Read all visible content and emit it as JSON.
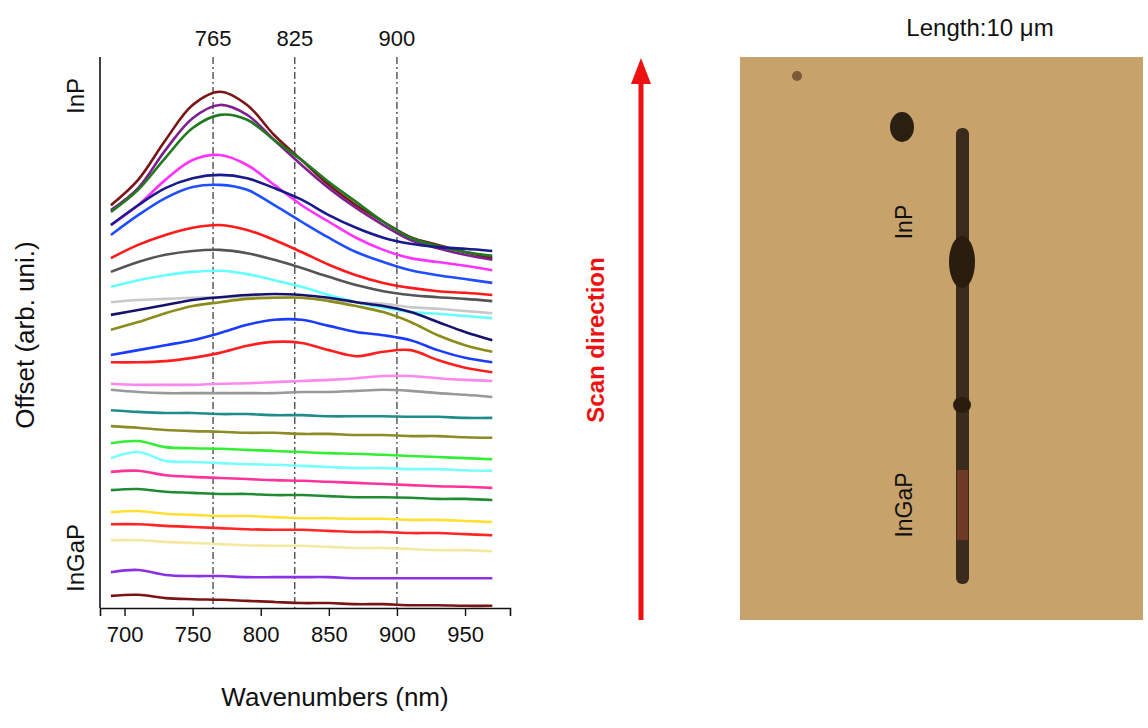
{
  "chart_data": {
    "type": "line",
    "x_label": "Wavenumbers (nm)",
    "y_label": "Offset (arb. uni.)",
    "annotations": [
      "InP",
      "InGaP"
    ],
    "vlines": [
      765,
      825,
      900
    ],
    "xlim": [
      682,
      983
    ],
    "ylim": [
      0,
      100
    ],
    "xticks": [
      700,
      750,
      800,
      850,
      900,
      950
    ],
    "tick_labels": "x",
    "grid": false,
    "x": [
      690,
      710,
      730,
      750,
      770,
      790,
      810,
      830,
      850,
      870,
      890,
      910,
      930,
      950,
      970
    ],
    "series": [
      {
        "color": "#7b1414",
        "values": [
          73.1,
          77.7,
          84.9,
          91.3,
          93.7,
          91.3,
          85.8,
          81.3,
          76.8,
          73.1,
          70.1,
          67.3,
          65.9,
          64.6,
          63.5
        ]
      },
      {
        "color": "#7f1f8f",
        "values": [
          72.2,
          76.2,
          83.1,
          88.9,
          91.3,
          89.5,
          84.9,
          80.4,
          76.2,
          72.6,
          69.5,
          66.8,
          65.3,
          64.1,
          63.2
        ]
      },
      {
        "color": "#1f7a1f",
        "values": [
          71.9,
          75.9,
          81.7,
          87.1,
          89.5,
          88.6,
          84.9,
          81.3,
          77.3,
          73.7,
          70.1,
          67.2,
          65.7,
          64.6,
          63.9
        ]
      },
      {
        "color": "#ff33ff",
        "values": [
          69.5,
          73.1,
          77.7,
          81.3,
          82.2,
          80.4,
          76.8,
          73.1,
          70.1,
          67.2,
          65.0,
          63.5,
          62.8,
          62.1,
          61.3
        ]
      },
      {
        "color": "#1a1a8c",
        "values": [
          69.5,
          73.1,
          76.2,
          78.0,
          78.6,
          78.0,
          76.2,
          74.1,
          71.3,
          69.0,
          67.2,
          66.1,
          65.5,
          65.2,
          64.8
        ]
      },
      {
        "color": "#1f4fff",
        "values": [
          67.7,
          71.3,
          74.4,
          76.4,
          76.8,
          75.9,
          73.1,
          70.1,
          67.2,
          64.6,
          62.8,
          61.3,
          60.4,
          59.7,
          59.0
        ]
      },
      {
        "color": "#ff1a1a",
        "values": [
          63.5,
          65.9,
          67.7,
          69.0,
          69.5,
          68.6,
          66.8,
          64.6,
          62.3,
          60.4,
          59.0,
          58.1,
          57.5,
          57.2,
          56.8
        ]
      },
      {
        "color": "#555555",
        "values": [
          61.0,
          62.8,
          64.1,
          64.8,
          65.0,
          64.4,
          63.2,
          61.7,
          60.1,
          58.6,
          57.5,
          56.8,
          56.4,
          56.1,
          55.7
        ]
      },
      {
        "color": "#66ffff",
        "values": [
          58.3,
          59.5,
          60.4,
          61.0,
          61.2,
          60.6,
          59.5,
          58.3,
          56.8,
          55.5,
          54.5,
          53.7,
          53.4,
          53.0,
          52.6
        ]
      },
      {
        "color": "#c8c8c8",
        "values": [
          55.5,
          55.9,
          56.1,
          56.3,
          56.4,
          56.4,
          56.4,
          56.3,
          55.9,
          55.5,
          55.2,
          54.6,
          54.3,
          53.9,
          53.5
        ]
      },
      {
        "color": "#14146e",
        "values": [
          53.2,
          54.1,
          55.0,
          55.9,
          56.4,
          56.8,
          57.0,
          56.8,
          56.3,
          55.5,
          54.8,
          53.7,
          51.9,
          50.1,
          48.6
        ]
      },
      {
        "color": "#8c8c1a",
        "values": [
          50.5,
          51.9,
          53.5,
          54.8,
          55.5,
          56.1,
          56.3,
          56.3,
          55.7,
          54.8,
          53.7,
          51.9,
          49.5,
          47.7,
          46.5
        ]
      },
      {
        "color": "#1a3cff",
        "values": [
          45.9,
          46.8,
          47.7,
          48.6,
          49.9,
          51.4,
          52.3,
          52.3,
          51.2,
          50.1,
          49.5,
          48.6,
          46.8,
          45.4,
          44.6
        ]
      },
      {
        "color": "#ff1f1f",
        "values": [
          44.6,
          44.6,
          44.8,
          45.4,
          46.3,
          47.6,
          48.3,
          48.1,
          46.8,
          45.7,
          46.5,
          46.8,
          45.0,
          43.6,
          42.8
        ]
      },
      {
        "color": "#ff88ee",
        "values": [
          40.7,
          40.5,
          40.5,
          40.5,
          40.7,
          40.8,
          41.0,
          41.2,
          41.4,
          41.7,
          42.1,
          42.1,
          41.7,
          41.4,
          41.2
        ]
      },
      {
        "color": "#999999",
        "values": [
          39.6,
          39.2,
          39.0,
          39.0,
          39.0,
          39.0,
          39.0,
          39.2,
          39.2,
          39.4,
          39.6,
          39.4,
          39.0,
          38.7,
          38.3
        ]
      },
      {
        "color": "#1f8c8c",
        "values": [
          35.9,
          35.6,
          35.4,
          35.4,
          35.2,
          35.2,
          35.0,
          35.0,
          34.8,
          34.8,
          34.8,
          34.7,
          34.7,
          34.5,
          34.5
        ]
      },
      {
        "color": "#8c8c26",
        "values": [
          33.0,
          32.7,
          32.3,
          32.1,
          32.0,
          31.8,
          31.8,
          31.6,
          31.6,
          31.4,
          31.4,
          31.2,
          31.2,
          31.0,
          30.9
        ]
      },
      {
        "color": "#33ee33",
        "values": [
          29.9,
          30.3,
          29.2,
          29.0,
          28.9,
          28.7,
          28.5,
          28.3,
          28.1,
          28.0,
          27.8,
          27.6,
          27.4,
          27.2,
          27.0
        ]
      },
      {
        "color": "#77ffff",
        "values": [
          27.2,
          28.3,
          26.7,
          26.5,
          26.3,
          26.1,
          26.0,
          25.8,
          25.6,
          25.4,
          25.4,
          25.2,
          25.2,
          25.0,
          24.9
        ]
      },
      {
        "color": "#ff3399",
        "values": [
          24.7,
          24.9,
          24.1,
          23.8,
          23.6,
          23.4,
          23.2,
          23.1,
          22.9,
          22.7,
          22.5,
          22.3,
          22.1,
          22.0,
          21.8
        ]
      },
      {
        "color": "#1f8c33",
        "values": [
          21.4,
          21.6,
          21.1,
          20.9,
          20.7,
          20.7,
          20.5,
          20.5,
          20.3,
          20.1,
          20.1,
          20.0,
          19.8,
          19.8,
          19.6
        ]
      },
      {
        "color": "#ffe033",
        "values": [
          17.4,
          17.6,
          17.1,
          16.9,
          16.7,
          16.7,
          16.5,
          16.3,
          16.3,
          16.2,
          16.2,
          16.0,
          16.0,
          15.8,
          15.6
        ]
      },
      {
        "color": "#ff2626",
        "values": [
          15.2,
          15.2,
          14.9,
          14.7,
          14.5,
          14.3,
          14.2,
          14.2,
          14.0,
          13.8,
          13.8,
          13.6,
          13.6,
          13.4,
          13.2
        ]
      },
      {
        "color": "#f5e8a0",
        "values": [
          12.3,
          12.3,
          12.0,
          11.8,
          11.6,
          11.4,
          11.3,
          11.3,
          11.1,
          10.9,
          10.9,
          10.7,
          10.5,
          10.5,
          10.3
        ]
      },
      {
        "color": "#8a33e6",
        "values": [
          6.5,
          6.9,
          6.0,
          5.8,
          5.8,
          5.6,
          5.6,
          5.6,
          5.6,
          5.4,
          5.4,
          5.4,
          5.4,
          5.4,
          5.4
        ]
      },
      {
        "color": "#7b1414",
        "values": [
          2.2,
          2.4,
          1.8,
          1.6,
          1.5,
          1.3,
          1.1,
          0.9,
          0.9,
          0.7,
          0.7,
          0.5,
          0.5,
          0.4,
          0.4
        ]
      }
    ]
  },
  "scan_arrow": {
    "label": "Scan direction"
  },
  "micrograph": {
    "caption": "Length:10 μm",
    "labels": [
      "InP",
      "InGaP"
    ]
  }
}
